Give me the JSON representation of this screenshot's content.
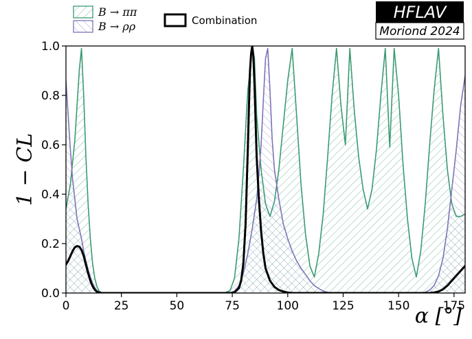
{
  "badge": {
    "title": "HFLAV",
    "subtitle": "Moriond 2024"
  },
  "colors": {
    "pipi": "#3a9a72",
    "rhorho": "#7b74b8",
    "combination": "#000000"
  },
  "chart_data": {
    "type": "line",
    "xlabel": "α [°]",
    "ylabel": "1 − CL",
    "xlim": [
      0,
      180
    ],
    "ylim": [
      0,
      1
    ],
    "xticks": [
      0,
      25,
      50,
      75,
      100,
      125,
      150,
      175
    ],
    "yticks": [
      0.0,
      0.2,
      0.4,
      0.6,
      0.8,
      1.0
    ],
    "xtick_labels": [
      "0",
      "25",
      "50",
      "75",
      "100",
      "125",
      "150",
      "175"
    ],
    "ytick_labels": [
      "0.0",
      "0.2",
      "0.4",
      "0.6",
      "0.8",
      "1.0"
    ],
    "grid": false,
    "legend_position": "top-left (above plot)",
    "series": [
      {
        "name": "B → ππ",
        "style": "hatched-area",
        "x": [
          0,
          2,
          4,
          5,
          6,
          7,
          8,
          9,
          10,
          11,
          12,
          13,
          14,
          15,
          16,
          17,
          18,
          70,
          72,
          74,
          76,
          78,
          80,
          82,
          84,
          85,
          86,
          88,
          90,
          92,
          94,
          96,
          98,
          100,
          102,
          104,
          106,
          108,
          110,
          112,
          114,
          116,
          118,
          120,
          122,
          124,
          126,
          128,
          130,
          132,
          134,
          136,
          138,
          140,
          142,
          144,
          146,
          148,
          150,
          152,
          154,
          156,
          158,
          160,
          162,
          164,
          166,
          168,
          170,
          172,
          174,
          176,
          178,
          180
        ],
        "y": [
          0.34,
          0.44,
          0.62,
          0.76,
          0.9,
          0.99,
          0.8,
          0.55,
          0.36,
          0.22,
          0.12,
          0.06,
          0.025,
          0.008,
          0.002,
          0.0,
          0.0,
          0.0,
          0.002,
          0.01,
          0.06,
          0.22,
          0.5,
          0.82,
          0.99,
          0.95,
          0.72,
          0.5,
          0.36,
          0.31,
          0.37,
          0.5,
          0.68,
          0.86,
          0.99,
          0.72,
          0.44,
          0.24,
          0.11,
          0.065,
          0.16,
          0.32,
          0.55,
          0.8,
          0.99,
          0.76,
          0.6,
          0.99,
          0.74,
          0.55,
          0.42,
          0.34,
          0.42,
          0.58,
          0.8,
          0.99,
          0.59,
          0.99,
          0.8,
          0.52,
          0.3,
          0.14,
          0.065,
          0.17,
          0.36,
          0.6,
          0.82,
          0.99,
          0.72,
          0.5,
          0.36,
          0.31,
          0.31,
          0.32
        ]
      },
      {
        "name": "B → ρρ",
        "style": "hatched-area",
        "x": [
          0,
          1,
          2,
          3,
          4,
          5,
          6,
          7,
          8,
          9,
          10,
          11,
          12,
          13,
          14,
          15,
          16,
          17,
          18,
          74,
          76,
          78,
          80,
          82,
          84,
          86,
          87,
          88,
          89,
          90,
          91,
          92,
          93,
          94,
          96,
          98,
          100,
          102,
          104,
          106,
          108,
          110,
          112,
          114,
          116,
          118,
          120,
          160,
          162,
          164,
          166,
          168,
          170,
          172,
          174,
          176,
          178,
          180
        ],
        "y": [
          0.86,
          0.72,
          0.58,
          0.46,
          0.38,
          0.3,
          0.26,
          0.22,
          0.17,
          0.13,
          0.095,
          0.065,
          0.04,
          0.022,
          0.01,
          0.004,
          0.001,
          0.0,
          0.0,
          0.0,
          0.008,
          0.03,
          0.08,
          0.16,
          0.26,
          0.38,
          0.48,
          0.6,
          0.78,
          0.95,
          0.99,
          0.82,
          0.62,
          0.5,
          0.38,
          0.28,
          0.22,
          0.17,
          0.13,
          0.1,
          0.075,
          0.05,
          0.03,
          0.018,
          0.008,
          0.003,
          0.0,
          0.0,
          0.003,
          0.012,
          0.03,
          0.07,
          0.14,
          0.26,
          0.42,
          0.58,
          0.76,
          0.88
        ]
      },
      {
        "name": "Combination",
        "style": "line",
        "x": [
          0,
          1,
          2,
          3,
          4,
          5,
          6,
          7,
          8,
          9,
          10,
          11,
          12,
          13,
          14,
          15,
          16,
          18,
          20,
          70,
          74,
          76,
          78,
          79,
          80,
          81,
          82,
          82.5,
          83,
          83.5,
          84,
          84.5,
          85,
          85.5,
          86,
          87,
          88,
          89,
          90,
          92,
          94,
          96,
          98,
          100,
          102,
          104,
          160,
          164,
          166,
          168,
          170,
          172,
          174,
          176,
          178,
          180
        ],
        "y": [
          0.115,
          0.13,
          0.15,
          0.17,
          0.185,
          0.19,
          0.188,
          0.175,
          0.15,
          0.115,
          0.08,
          0.05,
          0.028,
          0.013,
          0.005,
          0.002,
          0.0,
          0.0,
          0.0,
          0.0,
          0.0,
          0.003,
          0.02,
          0.05,
          0.12,
          0.28,
          0.58,
          0.75,
          0.9,
          0.97,
          1.0,
          0.96,
          0.85,
          0.7,
          0.55,
          0.38,
          0.25,
          0.16,
          0.1,
          0.05,
          0.025,
          0.012,
          0.006,
          0.002,
          0.0,
          0.0,
          0.0,
          0.0,
          0.002,
          0.006,
          0.015,
          0.03,
          0.05,
          0.07,
          0.09,
          0.11
        ]
      }
    ]
  }
}
